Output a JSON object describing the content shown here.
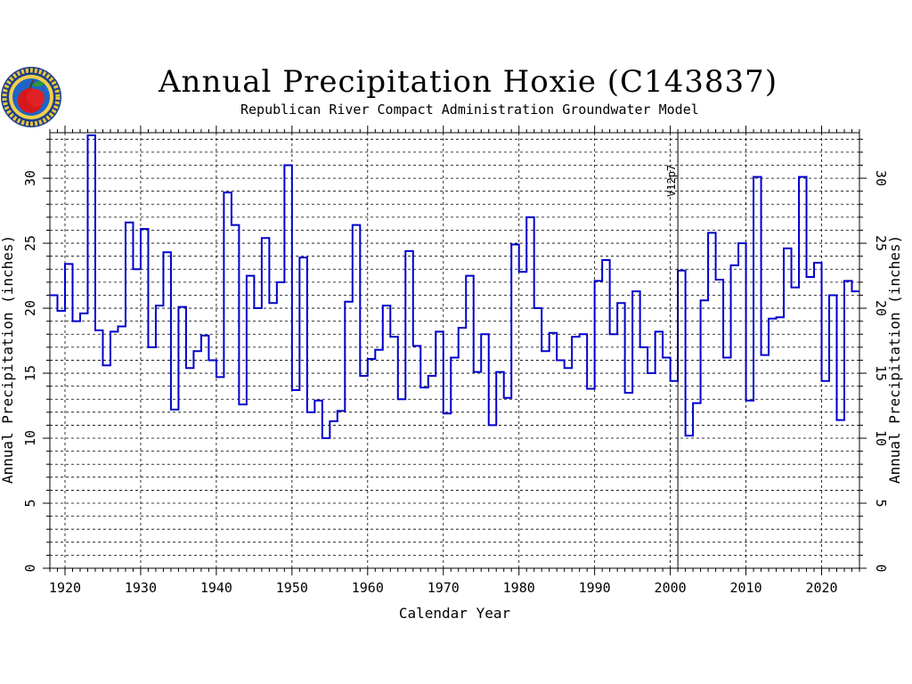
{
  "title": "Annual Precipitation Hoxie (C143837)",
  "subtitle": "Republican River Compact Administration Groundwater Model",
  "colors": {
    "series": "#0000cc",
    "grid": "#000000",
    "marker": "#000000"
  },
  "chart_data": {
    "type": "line",
    "style": "step",
    "title": "Annual Precipitation Hoxie (C143837)",
    "subtitle": "Republican River Compact Administration Groundwater Model",
    "xlabel": "Calendar Year",
    "ylabel": "Annual Precipitation (inches)",
    "ylabel_right": "Annual Precipitation (inches)",
    "xlim": [
      1918,
      2025
    ],
    "ylim": [
      0,
      33.5
    ],
    "xticks": [
      1920,
      1930,
      1940,
      1950,
      1960,
      1970,
      1980,
      1990,
      2000,
      2010,
      2020
    ],
    "yticks": [
      0,
      5,
      10,
      15,
      20,
      25,
      30
    ],
    "grid": true,
    "annotations": [
      {
        "x": 2001,
        "text": "V12p7"
      }
    ],
    "series": [
      {
        "x": [
          1918,
          1919,
          1920,
          1921,
          1922,
          1923,
          1924,
          1925,
          1926,
          1927,
          1928,
          1929,
          1930,
          1931,
          1932,
          1933,
          1934,
          1935,
          1936,
          1937,
          1938,
          1939,
          1940,
          1941,
          1942,
          1943,
          1944,
          1945,
          1946,
          1947,
          1948,
          1949,
          1950,
          1951,
          1952,
          1953,
          1954,
          1955,
          1956,
          1957,
          1958,
          1959,
          1960,
          1961,
          1962,
          1963,
          1964,
          1965,
          1966,
          1967,
          1968,
          1969,
          1970,
          1971,
          1972,
          1973,
          1974,
          1975,
          1976,
          1977,
          1978,
          1979,
          1980,
          1981,
          1982,
          1983,
          1984,
          1985,
          1986,
          1987,
          1988,
          1989,
          1990,
          1991,
          1992,
          1993,
          1994,
          1995,
          1996,
          1997,
          1998,
          1999,
          2000,
          2001,
          2002,
          2003,
          2004,
          2005,
          2006,
          2007,
          2008,
          2009,
          2010,
          2011,
          2012,
          2013,
          2014,
          2015,
          2016,
          2017,
          2018,
          2019,
          2020,
          2021,
          2022,
          2023,
          2024
        ],
        "values": [
          21.0,
          19.8,
          23.4,
          19.0,
          19.6,
          33.3,
          18.3,
          15.6,
          18.2,
          18.6,
          26.6,
          23.0,
          26.1,
          17.0,
          20.2,
          24.3,
          12.2,
          20.1,
          15.4,
          16.7,
          17.9,
          16.0,
          14.7,
          28.9,
          26.4,
          12.6,
          22.5,
          20.0,
          25.4,
          20.4,
          22.0,
          31.0,
          13.7,
          23.9,
          12.0,
          12.9,
          10.0,
          11.3,
          12.1,
          20.5,
          26.4,
          14.8,
          16.1,
          16.8,
          20.2,
          17.8,
          13.0,
          24.4,
          17.1,
          13.9,
          14.8,
          18.2,
          11.9,
          16.2,
          18.5,
          22.5,
          15.1,
          18.0,
          11.0,
          15.1,
          13.1,
          24.9,
          22.8,
          27.0,
          20.0,
          16.7,
          18.1,
          16.0,
          15.4,
          17.8,
          18.0,
          13.8,
          22.1,
          23.7,
          18.0,
          20.4,
          13.5,
          21.3,
          17.0,
          15.0,
          18.2,
          16.2,
          14.4,
          22.9,
          10.2,
          12.7,
          20.6,
          25.8,
          22.2,
          16.2,
          23.3,
          25.0,
          12.9,
          30.1,
          16.4,
          19.2,
          19.3,
          24.6,
          21.6,
          30.1,
          22.4,
          23.5,
          14.4,
          21.0,
          11.4,
          22.1,
          21.3
        ]
      }
    ]
  }
}
